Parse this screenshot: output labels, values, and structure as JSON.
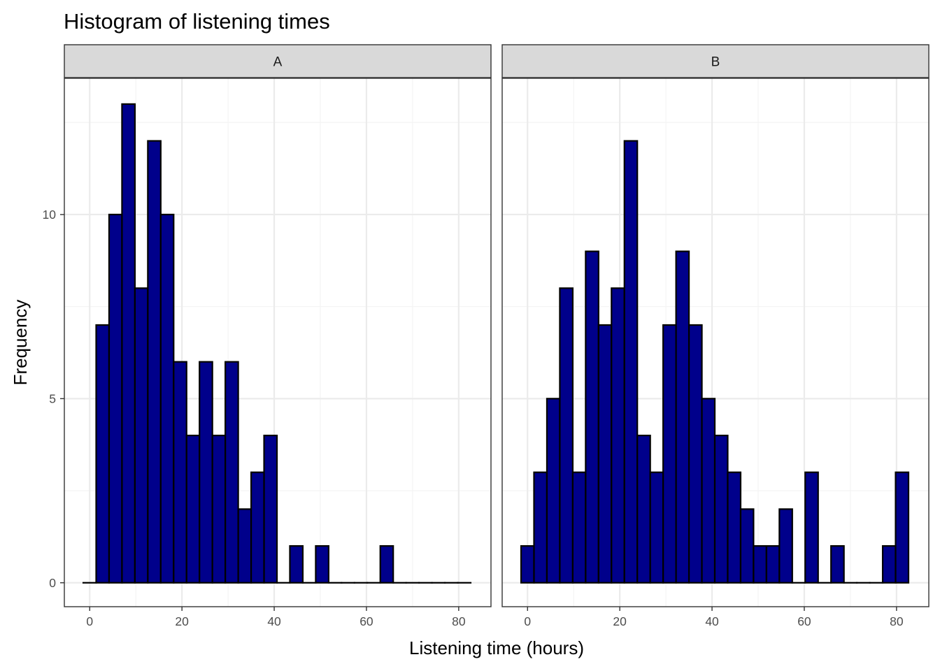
{
  "chart_data": {
    "type": "bar",
    "title": "Histogram of listening times",
    "xlabel": "Listening time (hours)",
    "ylabel": "Frequency",
    "bin_width": 2.8,
    "x_ticks": [
      0,
      20,
      40,
      60,
      80
    ],
    "y_ticks": [
      0,
      5,
      10
    ],
    "xlim": [
      -5.5,
      87
    ],
    "ylim": [
      -0.65,
      13.7
    ],
    "grid": true,
    "bar_fill": "#00008B",
    "bar_stroke": "#000000",
    "panels": [
      {
        "name": "A",
        "bin_centers": [
          0,
          2.8,
          5.6,
          8.4,
          11.2,
          14,
          16.8,
          19.6,
          22.4,
          25.2,
          28,
          30.8,
          33.6,
          36.4,
          39.2,
          42,
          44.8,
          47.6,
          50.4,
          53.2,
          56,
          58.8,
          61.6,
          64.4,
          67.2,
          70,
          72.8,
          75.6,
          78.4,
          81.2
        ],
        "values": [
          0,
          7,
          10,
          13,
          8,
          12,
          10,
          6,
          4,
          6,
          4,
          6,
          2,
          3,
          4,
          0,
          1,
          0,
          1,
          0,
          0,
          0,
          0,
          1,
          0,
          0,
          0,
          0,
          0,
          0
        ]
      },
      {
        "name": "B",
        "bin_centers": [
          0,
          2.8,
          5.6,
          8.4,
          11.2,
          14,
          16.8,
          19.6,
          22.4,
          25.2,
          28,
          30.8,
          33.6,
          36.4,
          39.2,
          42,
          44.8,
          47.6,
          50.4,
          53.2,
          56,
          58.8,
          61.6,
          64.4,
          67.2,
          70,
          72.8,
          75.6,
          78.4,
          81.2
        ],
        "values": [
          1,
          3,
          5,
          8,
          3,
          9,
          7,
          8,
          12,
          4,
          3,
          7,
          9,
          7,
          5,
          4,
          3,
          2,
          1,
          1,
          2,
          0,
          3,
          0,
          1,
          0,
          0,
          0,
          1,
          3
        ]
      }
    ]
  },
  "colors": {
    "panel_border": "#333333",
    "strip_fill": "#d9d9d9",
    "grid_major": "#ebebeb",
    "grid_minor": "#f3f3f3"
  }
}
